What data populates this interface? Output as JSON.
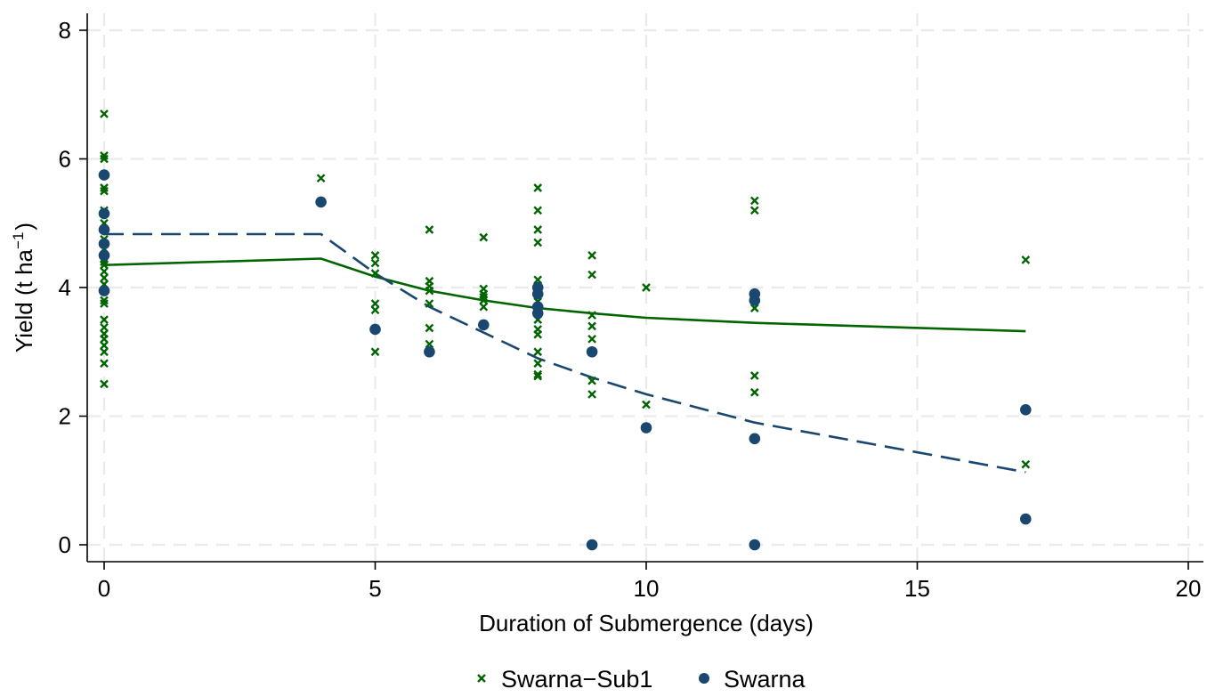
{
  "chart_data": {
    "type": "scatter",
    "title": "",
    "xlabel": "Duration of Submergence (days)",
    "ylabel": "Yield (t ha",
    "ylabel_superscript": "−1",
    "ylabel_suffix": ")",
    "xlim": [
      0,
      20
    ],
    "ylim": [
      0,
      8
    ],
    "xticks": [
      0,
      5,
      10,
      15,
      20
    ],
    "yticks": [
      0,
      2,
      4,
      6,
      8
    ],
    "grid": true,
    "legend_position": "bottom",
    "legend": [
      {
        "label": "Swarna−Sub1",
        "marker": "x",
        "color": "#006400"
      },
      {
        "label": "Swarna",
        "marker": "circle",
        "color": "#1a476f"
      }
    ],
    "series": [
      {
        "name": "Swarna−Sub1",
        "marker": "x",
        "color": "#006400",
        "points": [
          [
            0,
            6.7
          ],
          [
            0,
            6.05
          ],
          [
            0,
            6.0
          ],
          [
            0,
            5.55
          ],
          [
            0,
            5.5
          ],
          [
            0,
            5.2
          ],
          [
            0,
            5.0
          ],
          [
            0,
            4.9
          ],
          [
            0,
            4.75
          ],
          [
            0,
            4.6
          ],
          [
            0,
            4.45
          ],
          [
            0,
            4.4
          ],
          [
            0,
            4.35
          ],
          [
            0,
            4.25
          ],
          [
            0,
            4.15
          ],
          [
            0,
            4.05
          ],
          [
            0,
            3.95
          ],
          [
            0,
            3.8
          ],
          [
            0,
            3.75
          ],
          [
            0,
            3.5
          ],
          [
            0,
            3.38
          ],
          [
            0,
            3.28
          ],
          [
            0,
            3.2
          ],
          [
            0,
            3.1
          ],
          [
            0,
            3.0
          ],
          [
            0,
            2.82
          ],
          [
            0,
            2.5
          ],
          [
            4,
            5.7
          ],
          [
            5,
            4.5
          ],
          [
            5,
            4.38
          ],
          [
            5,
            4.22
          ],
          [
            5,
            3.75
          ],
          [
            5,
            3.65
          ],
          [
            5,
            3.0
          ],
          [
            6,
            4.9
          ],
          [
            6,
            4.1
          ],
          [
            6,
            4.02
          ],
          [
            6,
            3.95
          ],
          [
            6,
            3.75
          ],
          [
            6,
            3.37
          ],
          [
            6,
            3.12
          ],
          [
            7,
            4.78
          ],
          [
            7,
            3.98
          ],
          [
            7,
            3.9
          ],
          [
            7,
            3.85
          ],
          [
            7,
            3.8
          ],
          [
            7,
            3.7
          ],
          [
            8,
            5.55
          ],
          [
            8,
            5.2
          ],
          [
            8,
            4.9
          ],
          [
            8,
            4.7
          ],
          [
            8,
            4.12
          ],
          [
            8,
            4.02
          ],
          [
            8,
            3.78
          ],
          [
            8,
            3.5
          ],
          [
            8,
            3.35
          ],
          [
            8,
            3.27
          ],
          [
            8,
            3.0
          ],
          [
            8,
            2.82
          ],
          [
            8,
            2.65
          ],
          [
            8,
            2.62
          ],
          [
            9,
            4.5
          ],
          [
            9,
            4.2
          ],
          [
            9,
            3.57
          ],
          [
            9,
            3.4
          ],
          [
            9,
            3.2
          ],
          [
            9,
            2.55
          ],
          [
            9,
            2.34
          ],
          [
            10,
            4.0
          ],
          [
            10,
            2.18
          ],
          [
            12,
            5.35
          ],
          [
            12,
            5.2
          ],
          [
            12,
            3.68
          ],
          [
            12,
            2.63
          ],
          [
            12,
            2.37
          ],
          [
            17,
            4.43
          ],
          [
            17,
            1.25
          ]
        ],
        "trend": [
          [
            0,
            4.35
          ],
          [
            4,
            4.45
          ],
          [
            5,
            4.17
          ],
          [
            6,
            3.95
          ],
          [
            7,
            3.8
          ],
          [
            8,
            3.68
          ],
          [
            9,
            3.6
          ],
          [
            10,
            3.53
          ],
          [
            12,
            3.45
          ],
          [
            17,
            3.32
          ]
        ],
        "trend_style": "solid"
      },
      {
        "name": "Swarna",
        "marker": "circle",
        "color": "#1a476f",
        "points": [
          [
            0,
            5.75
          ],
          [
            0,
            5.15
          ],
          [
            0,
            4.9
          ],
          [
            0,
            4.68
          ],
          [
            0,
            4.5
          ],
          [
            0,
            3.95
          ],
          [
            4,
            5.33
          ],
          [
            5,
            3.35
          ],
          [
            6,
            3.0
          ],
          [
            7,
            3.42
          ],
          [
            8,
            4.0
          ],
          [
            8,
            3.9
          ],
          [
            8,
            3.7
          ],
          [
            8,
            3.6
          ],
          [
            9,
            3.0
          ],
          [
            9,
            0.0
          ],
          [
            10,
            1.82
          ],
          [
            12,
            3.9
          ],
          [
            12,
            3.8
          ],
          [
            12,
            1.65
          ],
          [
            12,
            0.0
          ],
          [
            17,
            2.1
          ],
          [
            17,
            0.4
          ]
        ],
        "trend": [
          [
            0,
            4.83
          ],
          [
            4,
            4.83
          ],
          [
            5,
            4.22
          ],
          [
            6,
            3.7
          ],
          [
            7,
            3.3
          ],
          [
            8,
            2.9
          ],
          [
            9,
            2.6
          ],
          [
            10,
            2.34
          ],
          [
            12,
            1.9
          ],
          [
            17,
            1.13
          ]
        ],
        "trend_style": "dashed"
      }
    ]
  }
}
